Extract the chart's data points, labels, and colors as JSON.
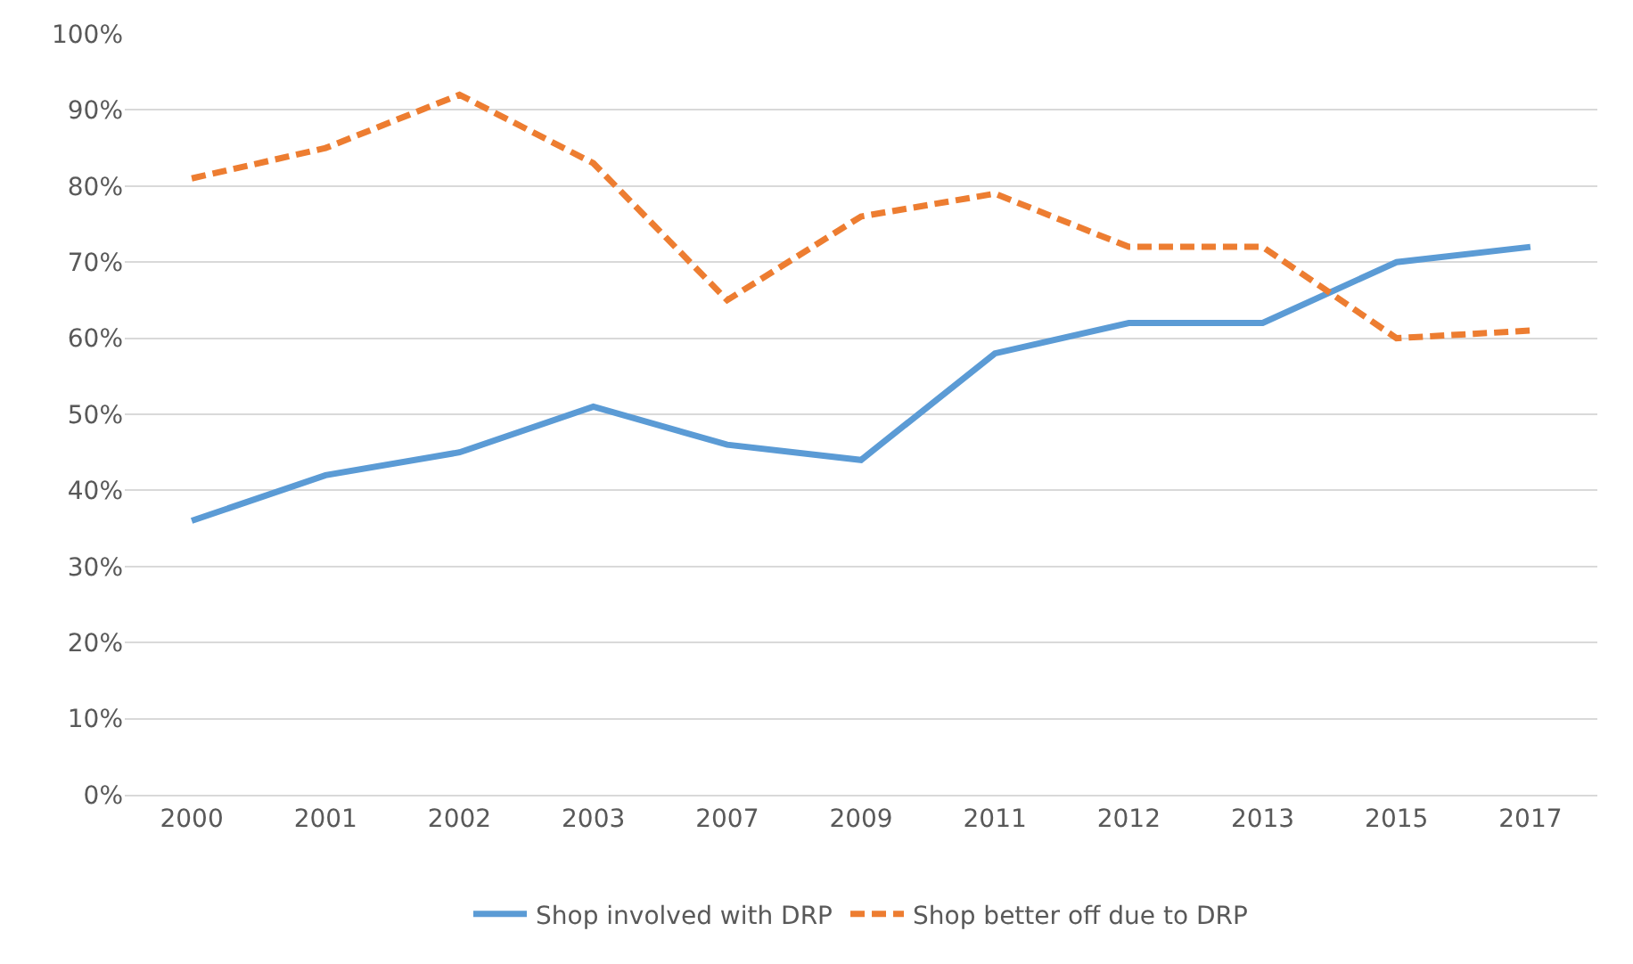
{
  "chart_data": {
    "type": "line",
    "categories": [
      "2000",
      "2001",
      "2002",
      "2003",
      "2007",
      "2009",
      "2011",
      "2012",
      "2013",
      "2015",
      "2017"
    ],
    "series": [
      {
        "name": "Shop involved with DRP",
        "color": "#5b9bd5",
        "line_style": "solid",
        "values": [
          36,
          42,
          45,
          51,
          46,
          44,
          58,
          62,
          62,
          70,
          72
        ]
      },
      {
        "name": "Shop better off due to DRP",
        "color": "#ed7d31",
        "line_style": "dashed",
        "values": [
          81,
          85,
          92,
          83,
          65,
          76,
          79,
          72,
          72,
          60,
          61
        ]
      }
    ],
    "ylim": [
      0,
      100
    ],
    "yticks": [
      {
        "value": 0,
        "label": "0%"
      },
      {
        "value": 10,
        "label": "10%"
      },
      {
        "value": 20,
        "label": "20%"
      },
      {
        "value": 30,
        "label": "30%"
      },
      {
        "value": 40,
        "label": "40%"
      },
      {
        "value": 50,
        "label": "50%"
      },
      {
        "value": 60,
        "label": "60%"
      },
      {
        "value": 70,
        "label": "70%"
      },
      {
        "value": 80,
        "label": "80%"
      },
      {
        "value": 90,
        "label": "90%"
      },
      {
        "value": 100,
        "label": "100%"
      }
    ],
    "grid": "y",
    "legend": "bottom",
    "marker": "none"
  }
}
